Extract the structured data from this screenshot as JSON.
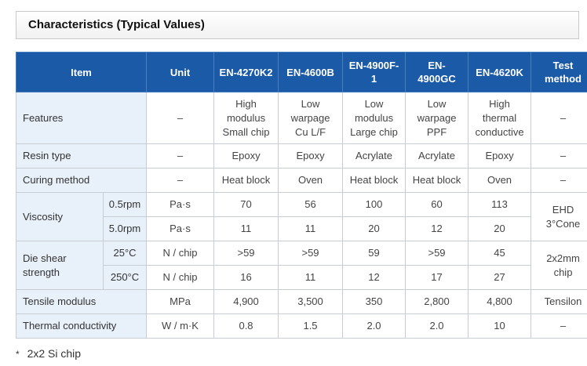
{
  "section": {
    "title": "Characteristics (Typical Values)"
  },
  "header": {
    "item": "Item",
    "unit": "Unit",
    "products": [
      "EN-4270K2",
      "EN-4600B",
      "EN-4900F-\n1",
      "EN-\n4900GC",
      "EN-4620K"
    ],
    "test_method": "Test\nmethod"
  },
  "rows": {
    "features": {
      "label": "Features",
      "unit": "–",
      "values": [
        "High\nmodulus\nSmall chip",
        "Low\nwarpage\nCu L/F",
        "Low\nmodulus\nLarge chip",
        "Low\nwarpage\nPPF",
        "High\nthermal\nconductive"
      ],
      "test": "–"
    },
    "resin": {
      "label": "Resin type",
      "unit": "–",
      "values": [
        "Epoxy",
        "Epoxy",
        "Acrylate",
        "Acrylate",
        "Epoxy"
      ],
      "test": "–"
    },
    "curing": {
      "label": "Curing method",
      "unit": "–",
      "values": [
        "Heat block",
        "Oven",
        "Heat block",
        "Heat block",
        "Oven"
      ],
      "test": "–"
    },
    "viscosity": {
      "label": "Viscosity",
      "test": "EHD\n3°Cone",
      "sub": [
        {
          "cond": "0.5rpm",
          "unit": "Pa·s",
          "values": [
            "70",
            "56",
            "100",
            "60",
            "113"
          ]
        },
        {
          "cond": "5.0rpm",
          "unit": "Pa·s",
          "values": [
            "11",
            "11",
            "20",
            "12",
            "20"
          ]
        }
      ]
    },
    "die_shear": {
      "label": "Die shear\nstrength",
      "test": "2x2mm\nchip",
      "sub": [
        {
          "cond": "25°C",
          "unit": "N / chip",
          "values": [
            ">59",
            ">59",
            "59",
            ">59",
            "45"
          ]
        },
        {
          "cond": "250°C",
          "unit": "N / chip",
          "values": [
            "16",
            "11",
            "12",
            "17",
            "27"
          ]
        }
      ]
    },
    "tensile": {
      "label": "Tensile modulus",
      "unit": "MPa",
      "values": [
        "4,900",
        "3,500",
        "350",
        "2,800",
        "4,800"
      ],
      "test": "Tensilon"
    },
    "thermal": {
      "label": "Thermal conductivity",
      "unit": "W / m·K",
      "values": [
        "0.8",
        "1.5",
        "2.0",
        "2.0",
        "10"
      ],
      "test": "–"
    }
  },
  "footnote": {
    "marker": "*",
    "text": "2x2 Si chip"
  }
}
